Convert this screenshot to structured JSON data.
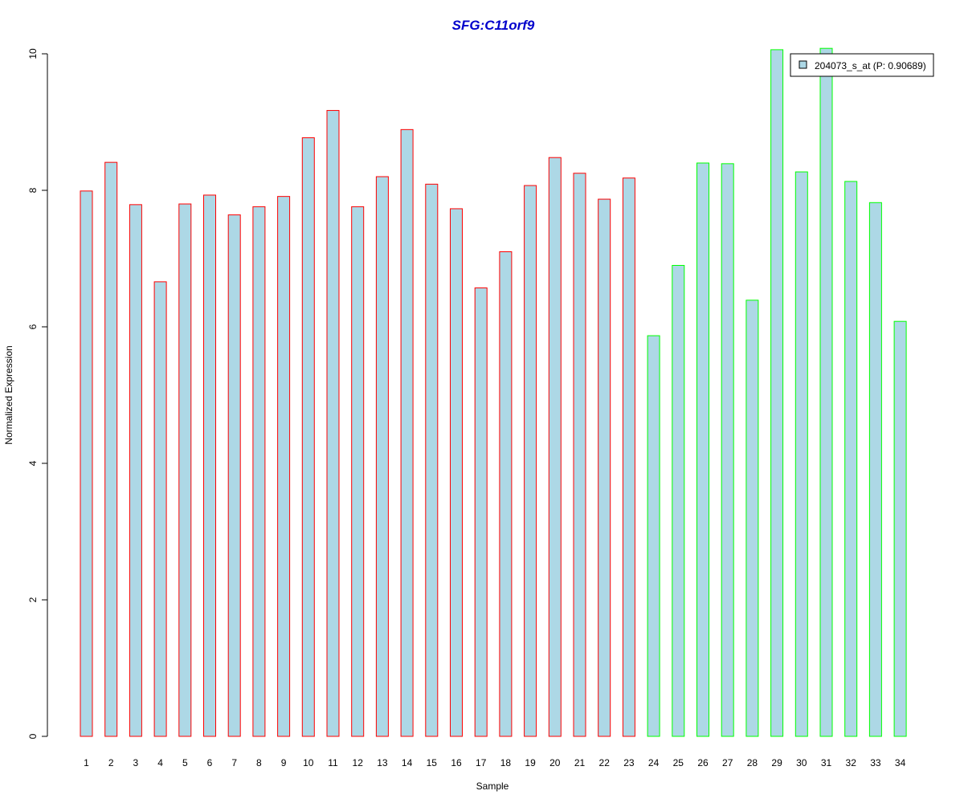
{
  "chart_data": {
    "type": "bar",
    "title": "SFG:C11orf9",
    "xlabel": "Sample",
    "ylabel": "Normalized Expression",
    "categories": [
      "1",
      "2",
      "3",
      "4",
      "5",
      "6",
      "7",
      "8",
      "9",
      "10",
      "11",
      "12",
      "13",
      "14",
      "15",
      "16",
      "17",
      "18",
      "19",
      "20",
      "21",
      "22",
      "23",
      "24",
      "25",
      "26",
      "27",
      "28",
      "29",
      "30",
      "31",
      "32",
      "33",
      "34"
    ],
    "series": [
      {
        "name": "204073_s_at (P: 0.90689)",
        "values": [
          7.99,
          8.41,
          7.79,
          6.66,
          7.8,
          7.93,
          7.64,
          7.76,
          7.91,
          8.77,
          9.17,
          7.76,
          8.2,
          8.89,
          8.09,
          7.73,
          6.57,
          7.1,
          8.07,
          8.48,
          8.25,
          7.87,
          8.18,
          5.87,
          6.9,
          8.4,
          8.39,
          6.39,
          10.06,
          8.27,
          10.08,
          8.13,
          7.82,
          6.08
        ]
      }
    ],
    "ylim": [
      0,
      10
    ],
    "yticks": [
      0,
      2,
      4,
      6,
      8,
      10
    ],
    "legend_position": "top-right",
    "colors": {
      "title": "#0000cc",
      "bar_fill": "#add8e6",
      "group1_border": "#ff0000",
      "group2_border": "#00ff00",
      "axis": "#000000"
    },
    "group1_count": 23
  }
}
